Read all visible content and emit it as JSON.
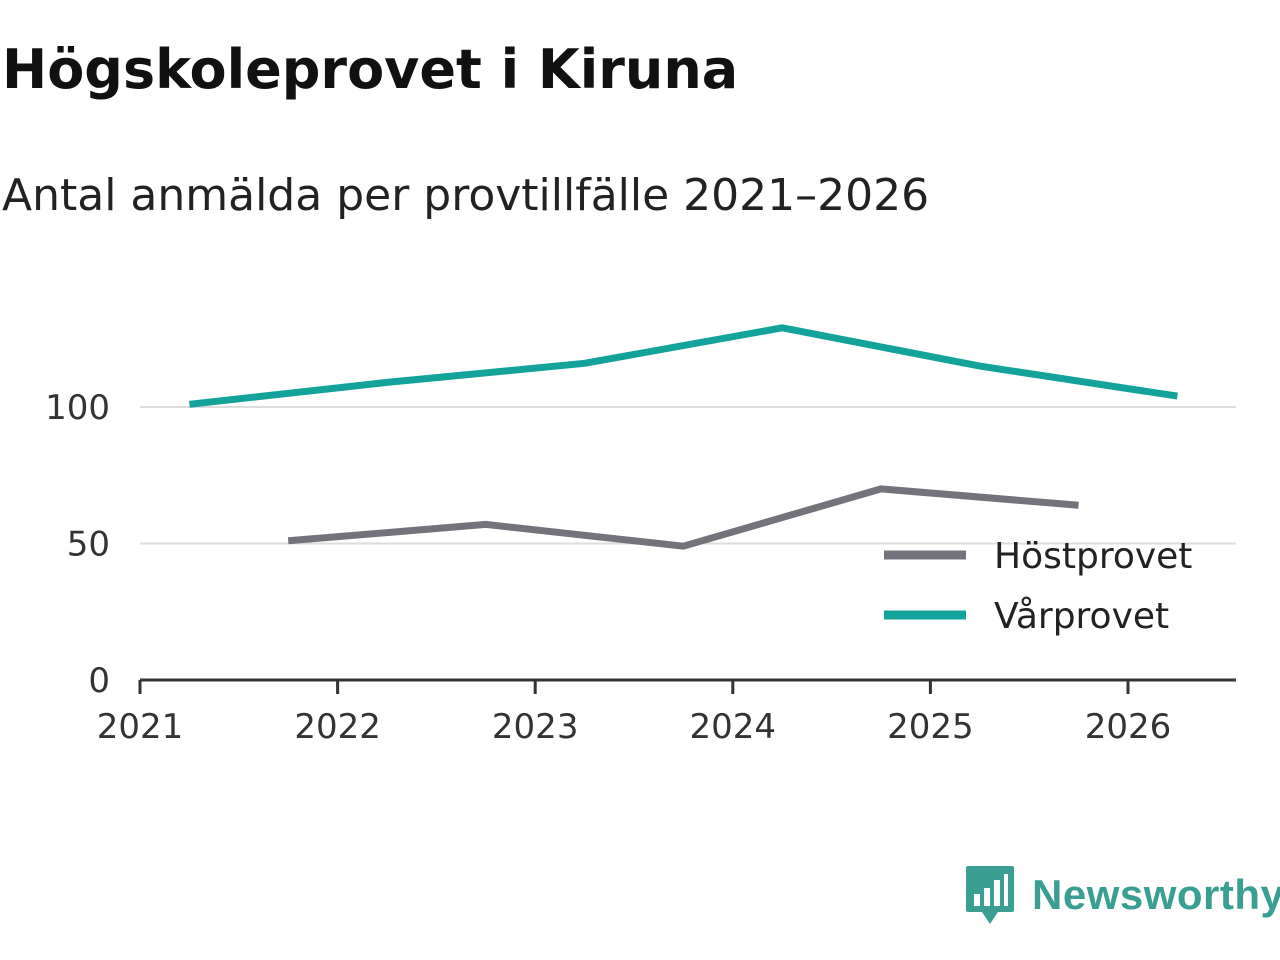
{
  "header": {
    "title": "Högskoleprovet i Kiruna",
    "subtitle": "Antal anmälda per provtillfälle 2021–2026"
  },
  "brand": {
    "name": "Newsworthy",
    "icon": "newsworthy-logo-icon",
    "color": "#3a9e93"
  },
  "colors": {
    "hostprovet": "#74737b",
    "varprovet": "#14a39a",
    "grid": "#dddddd",
    "axis": "#333333"
  },
  "chart_data": {
    "type": "line",
    "title": "Högskoleprovet i Kiruna",
    "subtitle": "Antal anmälda per provtillfälle 2021–2026",
    "xlabel": "",
    "ylabel": "",
    "xlim": [
      2021,
      2026.55
    ],
    "ylim": [
      0,
      140
    ],
    "x_ticks": [
      "2021",
      "2022",
      "2023",
      "2024",
      "2025",
      "2026"
    ],
    "y_ticks": [
      "0",
      "50",
      "100"
    ],
    "grid": "horizontal",
    "legend_position": "bottom-right",
    "series": [
      {
        "name": "Höstprovet",
        "color": "#74737b",
        "x": [
          2021.75,
          2022.75,
          2023.75,
          2024.75,
          2025.75
        ],
        "y": [
          51,
          57,
          49,
          70,
          64
        ]
      },
      {
        "name": "Vårprovet",
        "color": "#14a39a",
        "x": [
          2021.25,
          2022.25,
          2023.25,
          2024.25,
          2025.25,
          2026.25
        ],
        "y": [
          101,
          109,
          116,
          129,
          115,
          104
        ]
      }
    ]
  }
}
